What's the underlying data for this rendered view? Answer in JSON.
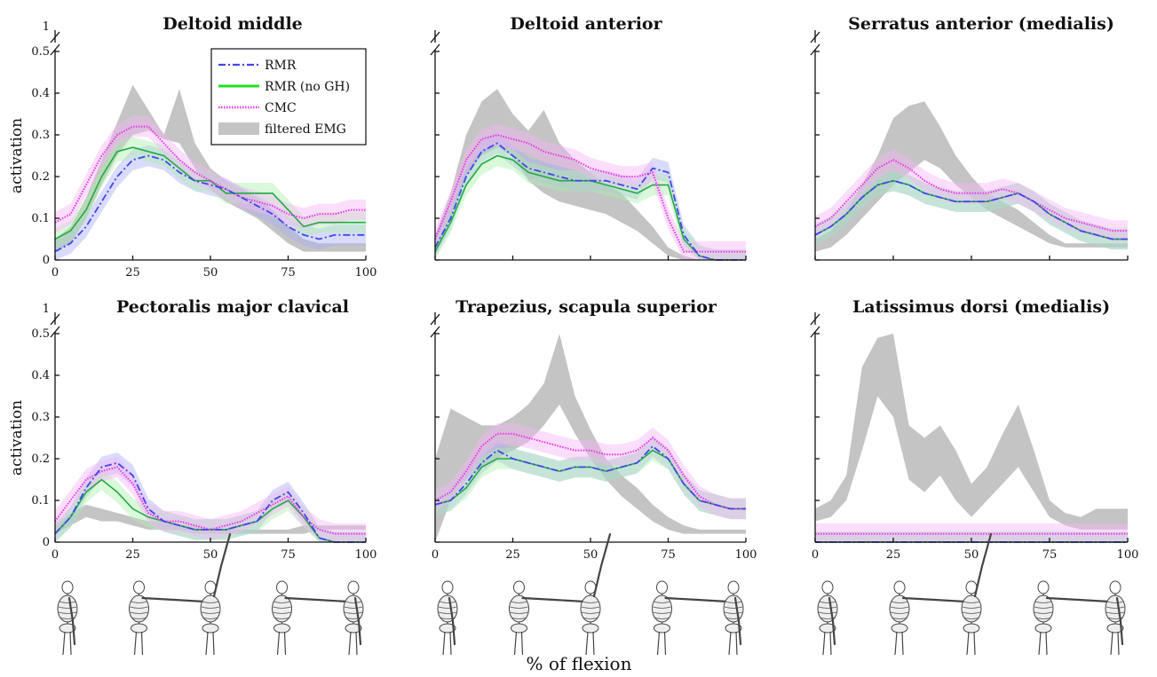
{
  "figure": {
    "xlabel": "% of flexion",
    "ylabel": "activation"
  },
  "legend": [
    {
      "label": "RMR",
      "color": "#4444ee",
      "style": "dashdot"
    },
    {
      "label": "RMR (no GH)",
      "color": "#22dd22",
      "style": "solid"
    },
    {
      "label": "CMC",
      "color": "#ee33ee",
      "style": "dotted"
    },
    {
      "label": "filtered EMG",
      "color": "#c4c4c4",
      "style": "band"
    }
  ],
  "chart_data": [
    {
      "type": "line",
      "title": "Deltoid middle",
      "ylabel": "activation",
      "xlim": [
        0,
        100
      ],
      "ylim": [
        0,
        0.5
      ],
      "xticks": [
        "0",
        "25",
        "50",
        "75",
        "100"
      ],
      "yticks": [
        "0",
        "0.1",
        "0.2",
        "0.3",
        "0.4",
        "0.5"
      ],
      "ybreak_label": "1",
      "x": [
        0,
        5,
        10,
        15,
        20,
        25,
        30,
        35,
        40,
        45,
        50,
        55,
        60,
        65,
        70,
        75,
        80,
        85,
        90,
        95,
        100
      ],
      "series": [
        {
          "name": "RMR",
          "values": [
            0.02,
            0.04,
            0.08,
            0.14,
            0.2,
            0.24,
            0.25,
            0.24,
            0.21,
            0.19,
            0.18,
            0.17,
            0.15,
            0.13,
            0.11,
            0.08,
            0.06,
            0.05,
            0.06,
            0.06,
            0.06
          ]
        },
        {
          "name": "RMR (no GH)",
          "values": [
            0.05,
            0.07,
            0.12,
            0.2,
            0.26,
            0.27,
            0.26,
            0.25,
            0.22,
            0.19,
            0.19,
            0.16,
            0.16,
            0.16,
            0.16,
            0.12,
            0.08,
            0.09,
            0.09,
            0.09,
            0.09
          ]
        },
        {
          "name": "CMC",
          "values": [
            0.09,
            0.11,
            0.18,
            0.25,
            0.3,
            0.32,
            0.32,
            0.28,
            0.24,
            0.21,
            0.19,
            0.17,
            0.15,
            0.14,
            0.13,
            0.11,
            0.1,
            0.11,
            0.11,
            0.12,
            0.12
          ]
        },
        {
          "name": "filtered EMG",
          "band_low": [
            0.02,
            0.04,
            0.1,
            0.18,
            0.25,
            0.3,
            0.31,
            0.29,
            0.28,
            0.22,
            0.17,
            0.14,
            0.12,
            0.1,
            0.07,
            0.04,
            0.02,
            0.02,
            0.02,
            0.02,
            0.02
          ],
          "band_high": [
            0.05,
            0.08,
            0.15,
            0.24,
            0.33,
            0.42,
            0.36,
            0.3,
            0.41,
            0.28,
            0.22,
            0.19,
            0.17,
            0.15,
            0.12,
            0.08,
            0.05,
            0.04,
            0.04,
            0.04,
            0.04
          ]
        }
      ]
    },
    {
      "type": "line",
      "title": "Deltoid anterior",
      "xlim": [
        0,
        100
      ],
      "ylim": [
        0,
        0.5
      ],
      "xticks": [],
      "yticks": [],
      "x": [
        0,
        5,
        10,
        15,
        20,
        25,
        30,
        35,
        40,
        45,
        50,
        55,
        60,
        65,
        70,
        75,
        80,
        85,
        90,
        95,
        100
      ],
      "series": [
        {
          "name": "RMR",
          "values": [
            0.03,
            0.1,
            0.2,
            0.26,
            0.28,
            0.25,
            0.22,
            0.21,
            0.2,
            0.19,
            0.19,
            0.19,
            0.18,
            0.17,
            0.22,
            0.21,
            0.06,
            0.01,
            0.0,
            0.0,
            0.0
          ]
        },
        {
          "name": "RMR (no GH)",
          "values": [
            0.02,
            0.09,
            0.18,
            0.23,
            0.25,
            0.24,
            0.21,
            0.2,
            0.19,
            0.19,
            0.19,
            0.18,
            0.17,
            0.16,
            0.18,
            0.18,
            0.05,
            0.01,
            0.0,
            0.0,
            0.0
          ]
        },
        {
          "name": "CMC",
          "values": [
            0.05,
            0.14,
            0.24,
            0.29,
            0.3,
            0.29,
            0.28,
            0.26,
            0.25,
            0.24,
            0.22,
            0.21,
            0.2,
            0.2,
            0.21,
            0.1,
            0.02,
            0.02,
            0.02,
            0.02,
            0.02
          ]
        },
        {
          "name": "filtered EMG",
          "band_low": [
            0.01,
            0.1,
            0.2,
            0.25,
            0.27,
            0.25,
            0.19,
            0.16,
            0.14,
            0.13,
            0.12,
            0.11,
            0.09,
            0.07,
            0.04,
            0.01,
            0.0,
            0.0,
            0.0,
            0.0,
            0.0
          ],
          "band_high": [
            0.06,
            0.16,
            0.3,
            0.38,
            0.41,
            0.35,
            0.31,
            0.36,
            0.28,
            0.24,
            0.21,
            0.18,
            0.16,
            0.12,
            0.08,
            0.03,
            0.01,
            0.0,
            0.0,
            0.0,
            0.0
          ]
        }
      ]
    },
    {
      "type": "line",
      "title": "Serratus anterior (medialis)",
      "xlim": [
        0,
        100
      ],
      "ylim": [
        0,
        0.5
      ],
      "xticks": [],
      "yticks": [],
      "x": [
        0,
        5,
        10,
        15,
        20,
        25,
        30,
        35,
        40,
        45,
        50,
        55,
        60,
        65,
        70,
        75,
        80,
        85,
        90,
        95,
        100
      ],
      "series": [
        {
          "name": "RMR",
          "values": [
            0.06,
            0.08,
            0.11,
            0.15,
            0.18,
            0.19,
            0.18,
            0.16,
            0.15,
            0.14,
            0.14,
            0.14,
            0.15,
            0.16,
            0.14,
            0.11,
            0.09,
            0.07,
            0.06,
            0.05,
            0.05
          ]
        },
        {
          "name": "RMR (no GH)",
          "values": [
            0.06,
            0.08,
            0.11,
            0.15,
            0.18,
            0.19,
            0.18,
            0.16,
            0.15,
            0.14,
            0.14,
            0.14,
            0.15,
            0.16,
            0.14,
            0.11,
            0.09,
            0.07,
            0.06,
            0.05,
            0.05
          ]
        },
        {
          "name": "CMC",
          "values": [
            0.08,
            0.1,
            0.14,
            0.18,
            0.22,
            0.24,
            0.22,
            0.19,
            0.17,
            0.16,
            0.16,
            0.16,
            0.17,
            0.16,
            0.14,
            0.12,
            0.1,
            0.09,
            0.08,
            0.07,
            0.07
          ]
        },
        {
          "name": "filtered EMG",
          "band_low": [
            0.02,
            0.03,
            0.06,
            0.1,
            0.14,
            0.18,
            0.21,
            0.24,
            0.22,
            0.18,
            0.15,
            0.12,
            0.1,
            0.08,
            0.06,
            0.04,
            0.03,
            0.03,
            0.03,
            0.03,
            0.03
          ],
          "band_high": [
            0.05,
            0.07,
            0.12,
            0.18,
            0.25,
            0.34,
            0.37,
            0.38,
            0.32,
            0.25,
            0.2,
            0.16,
            0.14,
            0.12,
            0.09,
            0.06,
            0.04,
            0.04,
            0.04,
            0.04,
            0.04
          ]
        }
      ]
    },
    {
      "type": "line",
      "title": "Pectoralis major clavical",
      "ylabel": "activation",
      "xlim": [
        0,
        100
      ],
      "ylim": [
        0,
        0.5
      ],
      "xticks": [
        "0",
        "25",
        "50",
        "75",
        "100"
      ],
      "yticks": [
        "0",
        "0.1",
        "0.2",
        "0.3",
        "0.4",
        "0.5"
      ],
      "ybreak_label": "1",
      "x": [
        0,
        5,
        10,
        15,
        20,
        25,
        30,
        35,
        40,
        45,
        50,
        55,
        60,
        65,
        70,
        75,
        80,
        85,
        90,
        95,
        100
      ],
      "series": [
        {
          "name": "RMR",
          "values": [
            0.02,
            0.06,
            0.13,
            0.18,
            0.19,
            0.16,
            0.08,
            0.05,
            0.04,
            0.03,
            0.03,
            0.03,
            0.04,
            0.05,
            0.1,
            0.12,
            0.07,
            0.01,
            0.0,
            0.0,
            0.0
          ]
        },
        {
          "name": "RMR (no GH)",
          "values": [
            0.02,
            0.06,
            0.12,
            0.15,
            0.12,
            0.08,
            0.06,
            0.05,
            0.04,
            0.03,
            0.03,
            0.03,
            0.04,
            0.05,
            0.08,
            0.1,
            0.06,
            0.01,
            0.0,
            0.0,
            0.0
          ]
        },
        {
          "name": "CMC",
          "values": [
            0.05,
            0.1,
            0.15,
            0.17,
            0.18,
            0.14,
            0.07,
            0.05,
            0.05,
            0.04,
            0.03,
            0.04,
            0.05,
            0.07,
            0.09,
            0.11,
            0.06,
            0.03,
            0.02,
            0.02,
            0.02
          ]
        },
        {
          "name": "filtered EMG",
          "band_low": [
            0.02,
            0.04,
            0.06,
            0.05,
            0.05,
            0.04,
            0.03,
            0.03,
            0.03,
            0.02,
            0.02,
            0.02,
            0.02,
            0.02,
            0.02,
            0.02,
            0.02,
            0.03,
            0.03,
            0.03,
            0.03
          ],
          "band_high": [
            0.04,
            0.07,
            0.09,
            0.08,
            0.07,
            0.06,
            0.05,
            0.05,
            0.04,
            0.04,
            0.03,
            0.03,
            0.03,
            0.03,
            0.03,
            0.03,
            0.04,
            0.04,
            0.04,
            0.04,
            0.04
          ]
        }
      ]
    },
    {
      "type": "line",
      "title": "Trapezius, scapula superior",
      "xlim": [
        0,
        100
      ],
      "ylim": [
        0,
        0.5
      ],
      "xticks": [
        "0",
        "25",
        "50",
        "75",
        "100"
      ],
      "yticks": [],
      "x": [
        0,
        5,
        10,
        15,
        20,
        25,
        30,
        35,
        40,
        45,
        50,
        55,
        60,
        65,
        70,
        75,
        80,
        85,
        90,
        95,
        100
      ],
      "series": [
        {
          "name": "RMR",
          "values": [
            0.09,
            0.1,
            0.14,
            0.19,
            0.22,
            0.2,
            0.19,
            0.18,
            0.17,
            0.18,
            0.18,
            0.17,
            0.18,
            0.19,
            0.23,
            0.2,
            0.14,
            0.1,
            0.09,
            0.08,
            0.08
          ]
        },
        {
          "name": "RMR (no GH)",
          "values": [
            0.09,
            0.1,
            0.13,
            0.18,
            0.2,
            0.2,
            0.19,
            0.18,
            0.17,
            0.18,
            0.18,
            0.17,
            0.18,
            0.19,
            0.22,
            0.2,
            0.14,
            0.1,
            0.09,
            0.08,
            0.08
          ]
        },
        {
          "name": "CMC",
          "values": [
            0.1,
            0.12,
            0.17,
            0.23,
            0.26,
            0.26,
            0.25,
            0.24,
            0.23,
            0.22,
            0.22,
            0.21,
            0.21,
            0.22,
            0.25,
            0.22,
            0.16,
            0.11,
            0.09,
            0.08,
            0.08
          ]
        },
        {
          "name": "filtered EMG",
          "band_low": [
            0.0,
            0.1,
            0.15,
            0.18,
            0.2,
            0.22,
            0.24,
            0.28,
            0.33,
            0.26,
            0.2,
            0.15,
            0.11,
            0.08,
            0.05,
            0.03,
            0.02,
            0.02,
            0.02,
            0.02,
            0.02
          ],
          "band_high": [
            0.2,
            0.32,
            0.3,
            0.28,
            0.28,
            0.3,
            0.33,
            0.38,
            0.5,
            0.35,
            0.27,
            0.2,
            0.16,
            0.13,
            0.09,
            0.06,
            0.04,
            0.03,
            0.03,
            0.03,
            0.03
          ]
        }
      ]
    },
    {
      "type": "line",
      "title": "Latissimus dorsi (medialis)",
      "xlim": [
        0,
        100
      ],
      "ylim": [
        0,
        0.5
      ],
      "xticks": [
        "0",
        "25",
        "50",
        "75",
        "100"
      ],
      "yticks": [],
      "x": [
        0,
        5,
        10,
        15,
        20,
        25,
        30,
        35,
        40,
        45,
        50,
        55,
        60,
        65,
        70,
        75,
        80,
        85,
        90,
        95,
        100
      ],
      "series": [
        {
          "name": "RMR",
          "values": [
            0.0,
            0.0,
            0.0,
            0.0,
            0.0,
            0.0,
            0.0,
            0.0,
            0.0,
            0.0,
            0.0,
            0.0,
            0.0,
            0.0,
            0.0,
            0.0,
            0.0,
            0.0,
            0.0,
            0.0,
            0.0
          ]
        },
        {
          "name": "RMR (no GH)",
          "values": [
            0.0,
            0.0,
            0.0,
            0.0,
            0.0,
            0.0,
            0.0,
            0.0,
            0.0,
            0.0,
            0.0,
            0.0,
            0.0,
            0.0,
            0.0,
            0.0,
            0.0,
            0.0,
            0.0,
            0.0,
            0.0
          ]
        },
        {
          "name": "CMC",
          "values": [
            0.02,
            0.02,
            0.02,
            0.02,
            0.02,
            0.02,
            0.02,
            0.02,
            0.02,
            0.02,
            0.02,
            0.02,
            0.02,
            0.02,
            0.02,
            0.02,
            0.02,
            0.02,
            0.02,
            0.02,
            0.02
          ]
        },
        {
          "name": "filtered EMG",
          "band_low": [
            0.05,
            0.06,
            0.1,
            0.22,
            0.35,
            0.3,
            0.15,
            0.12,
            0.16,
            0.1,
            0.06,
            0.1,
            0.14,
            0.18,
            0.12,
            0.06,
            0.04,
            0.03,
            0.03,
            0.03,
            0.03
          ],
          "band_high": [
            0.08,
            0.1,
            0.16,
            0.42,
            0.49,
            0.5,
            0.28,
            0.25,
            0.28,
            0.22,
            0.14,
            0.18,
            0.26,
            0.33,
            0.22,
            0.1,
            0.07,
            0.06,
            0.08,
            0.08,
            0.08
          ]
        }
      ]
    }
  ]
}
